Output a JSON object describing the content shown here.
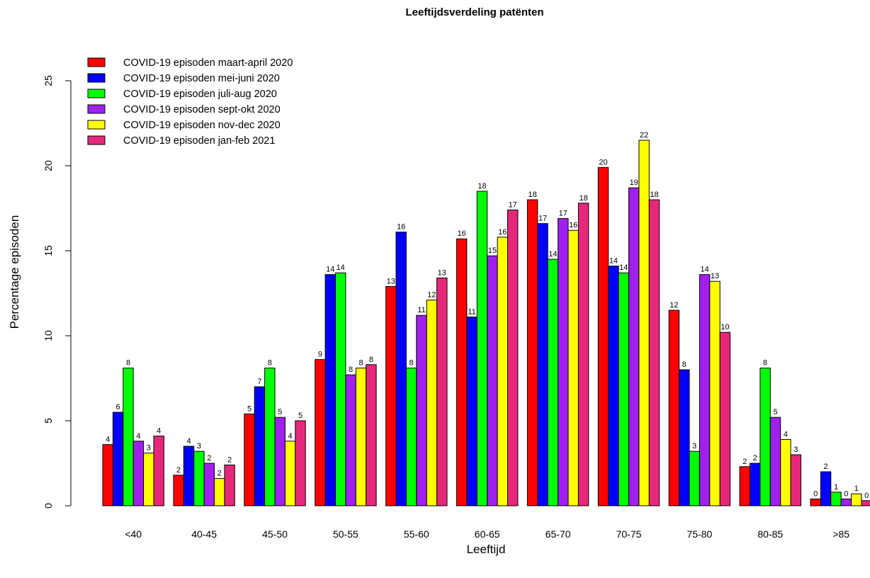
{
  "chart_data": {
    "type": "bar",
    "title": "Leeftijdsverdeling patënten",
    "xlabel": "Leeftijd",
    "ylabel": "Percentage episoden",
    "ylim": [
      0,
      25
    ],
    "yticks": [
      0,
      5,
      10,
      15,
      20,
      25
    ],
    "grid": false,
    "legend_position": "top-left",
    "categories": [
      "<40",
      "40-45",
      "45-50",
      "50-55",
      "55-60",
      "60-65",
      "65-70",
      "70-75",
      "75-80",
      "80-85",
      ">85"
    ],
    "series": [
      {
        "name": "COVID-19 episoden maart-april 2020",
        "color": "#ff0000",
        "values": [
          3.6,
          1.8,
          5.4,
          8.6,
          12.9,
          15.7,
          18.0,
          19.9,
          11.5,
          2.3,
          0.4
        ],
        "labels": [
          "4",
          "2",
          "5",
          "9",
          "13",
          "16",
          "18",
          "20",
          "12",
          "2",
          "0"
        ]
      },
      {
        "name": "COVID-19 episoden mei-juni 2020",
        "color": "#0000ff",
        "values": [
          5.5,
          3.5,
          7.0,
          13.6,
          16.1,
          11.1,
          16.6,
          14.1,
          8.0,
          2.5,
          2.0
        ],
        "labels": [
          "6",
          "4",
          "7",
          "14",
          "16",
          "11",
          "17",
          "14",
          "8",
          "2",
          "2"
        ]
      },
      {
        "name": "COVID-19 episoden juli-aug 2020",
        "color": "#00ff00",
        "values": [
          8.1,
          3.2,
          8.1,
          13.7,
          8.1,
          18.5,
          14.5,
          13.7,
          3.2,
          8.1,
          0.8
        ],
        "labels": [
          "8",
          "3",
          "8",
          "14",
          "8",
          "18",
          "14",
          "14",
          "3",
          "8",
          "1"
        ]
      },
      {
        "name": "COVID-19 episoden sept-okt 2020",
        "color": "#a020f0",
        "values": [
          3.8,
          2.5,
          5.2,
          7.7,
          11.2,
          14.7,
          16.9,
          18.7,
          13.6,
          5.2,
          0.4
        ],
        "labels": [
          "4",
          "2",
          "5",
          "8",
          "11",
          "15",
          "17",
          "19",
          "14",
          "5",
          "0"
        ]
      },
      {
        "name": "COVID-19 episoden nov-dec 2020",
        "color": "#ffff00",
        "values": [
          3.1,
          1.6,
          3.8,
          8.1,
          12.1,
          15.8,
          16.2,
          21.5,
          13.2,
          3.9,
          0.7
        ],
        "labels": [
          "3",
          "2",
          "4",
          "8",
          "12",
          "16",
          "16",
          "22",
          "13",
          "4",
          "1"
        ]
      },
      {
        "name": "COVID-19 episoden jan-feb 2021",
        "color": "#e6287a",
        "values": [
          4.1,
          2.4,
          5.0,
          8.3,
          13.4,
          17.4,
          17.8,
          18.0,
          10.2,
          3.0,
          0.3
        ],
        "labels": [
          "4",
          "2",
          "5",
          "8",
          "13",
          "17",
          "18",
          "18",
          "10",
          "3",
          "0"
        ]
      }
    ]
  }
}
